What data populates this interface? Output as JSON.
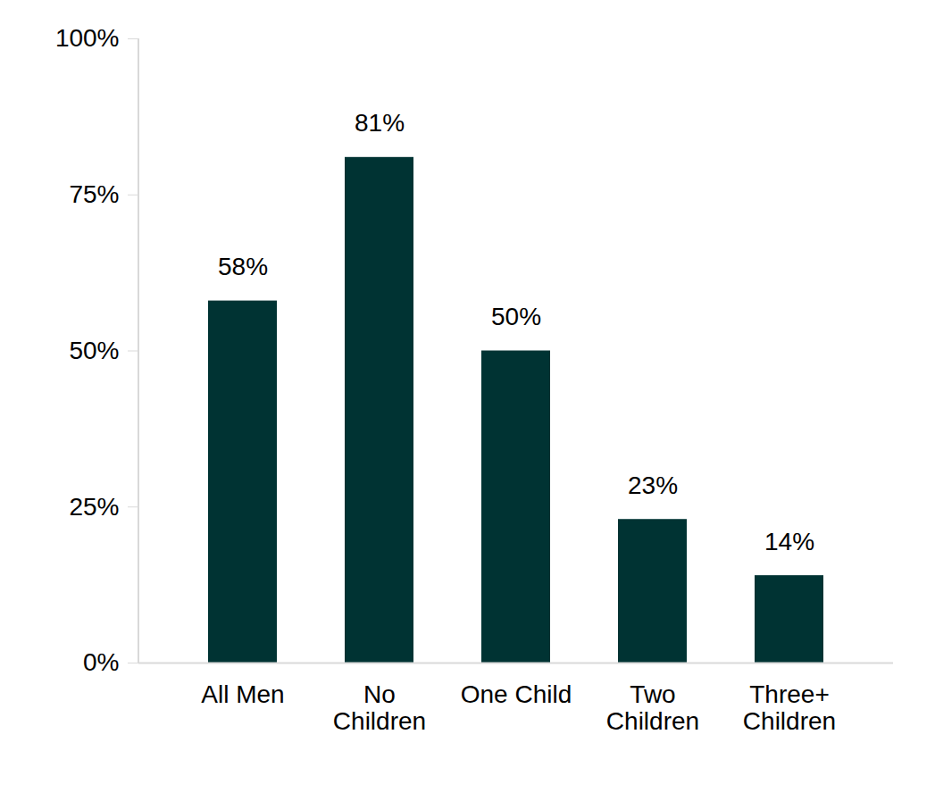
{
  "chart_data": {
    "type": "bar",
    "categories": [
      "All Men",
      "No\nChildren",
      "One Child",
      "Two\nChildren",
      "Three+\nChildren"
    ],
    "values": [
      58,
      81,
      50,
      23,
      14
    ],
    "value_labels": [
      "58%",
      "81%",
      "50%",
      "23%",
      "14%"
    ],
    "data_labels": true,
    "color": "#003333",
    "ylim": [
      0,
      100
    ],
    "yticks": [
      {
        "value": 0,
        "label": "0%"
      },
      {
        "value": 25,
        "label": "25%"
      },
      {
        "value": 50,
        "label": "50%"
      },
      {
        "value": 75,
        "label": "75%"
      },
      {
        "value": 100,
        "label": "100%"
      }
    ],
    "grid": false
  }
}
